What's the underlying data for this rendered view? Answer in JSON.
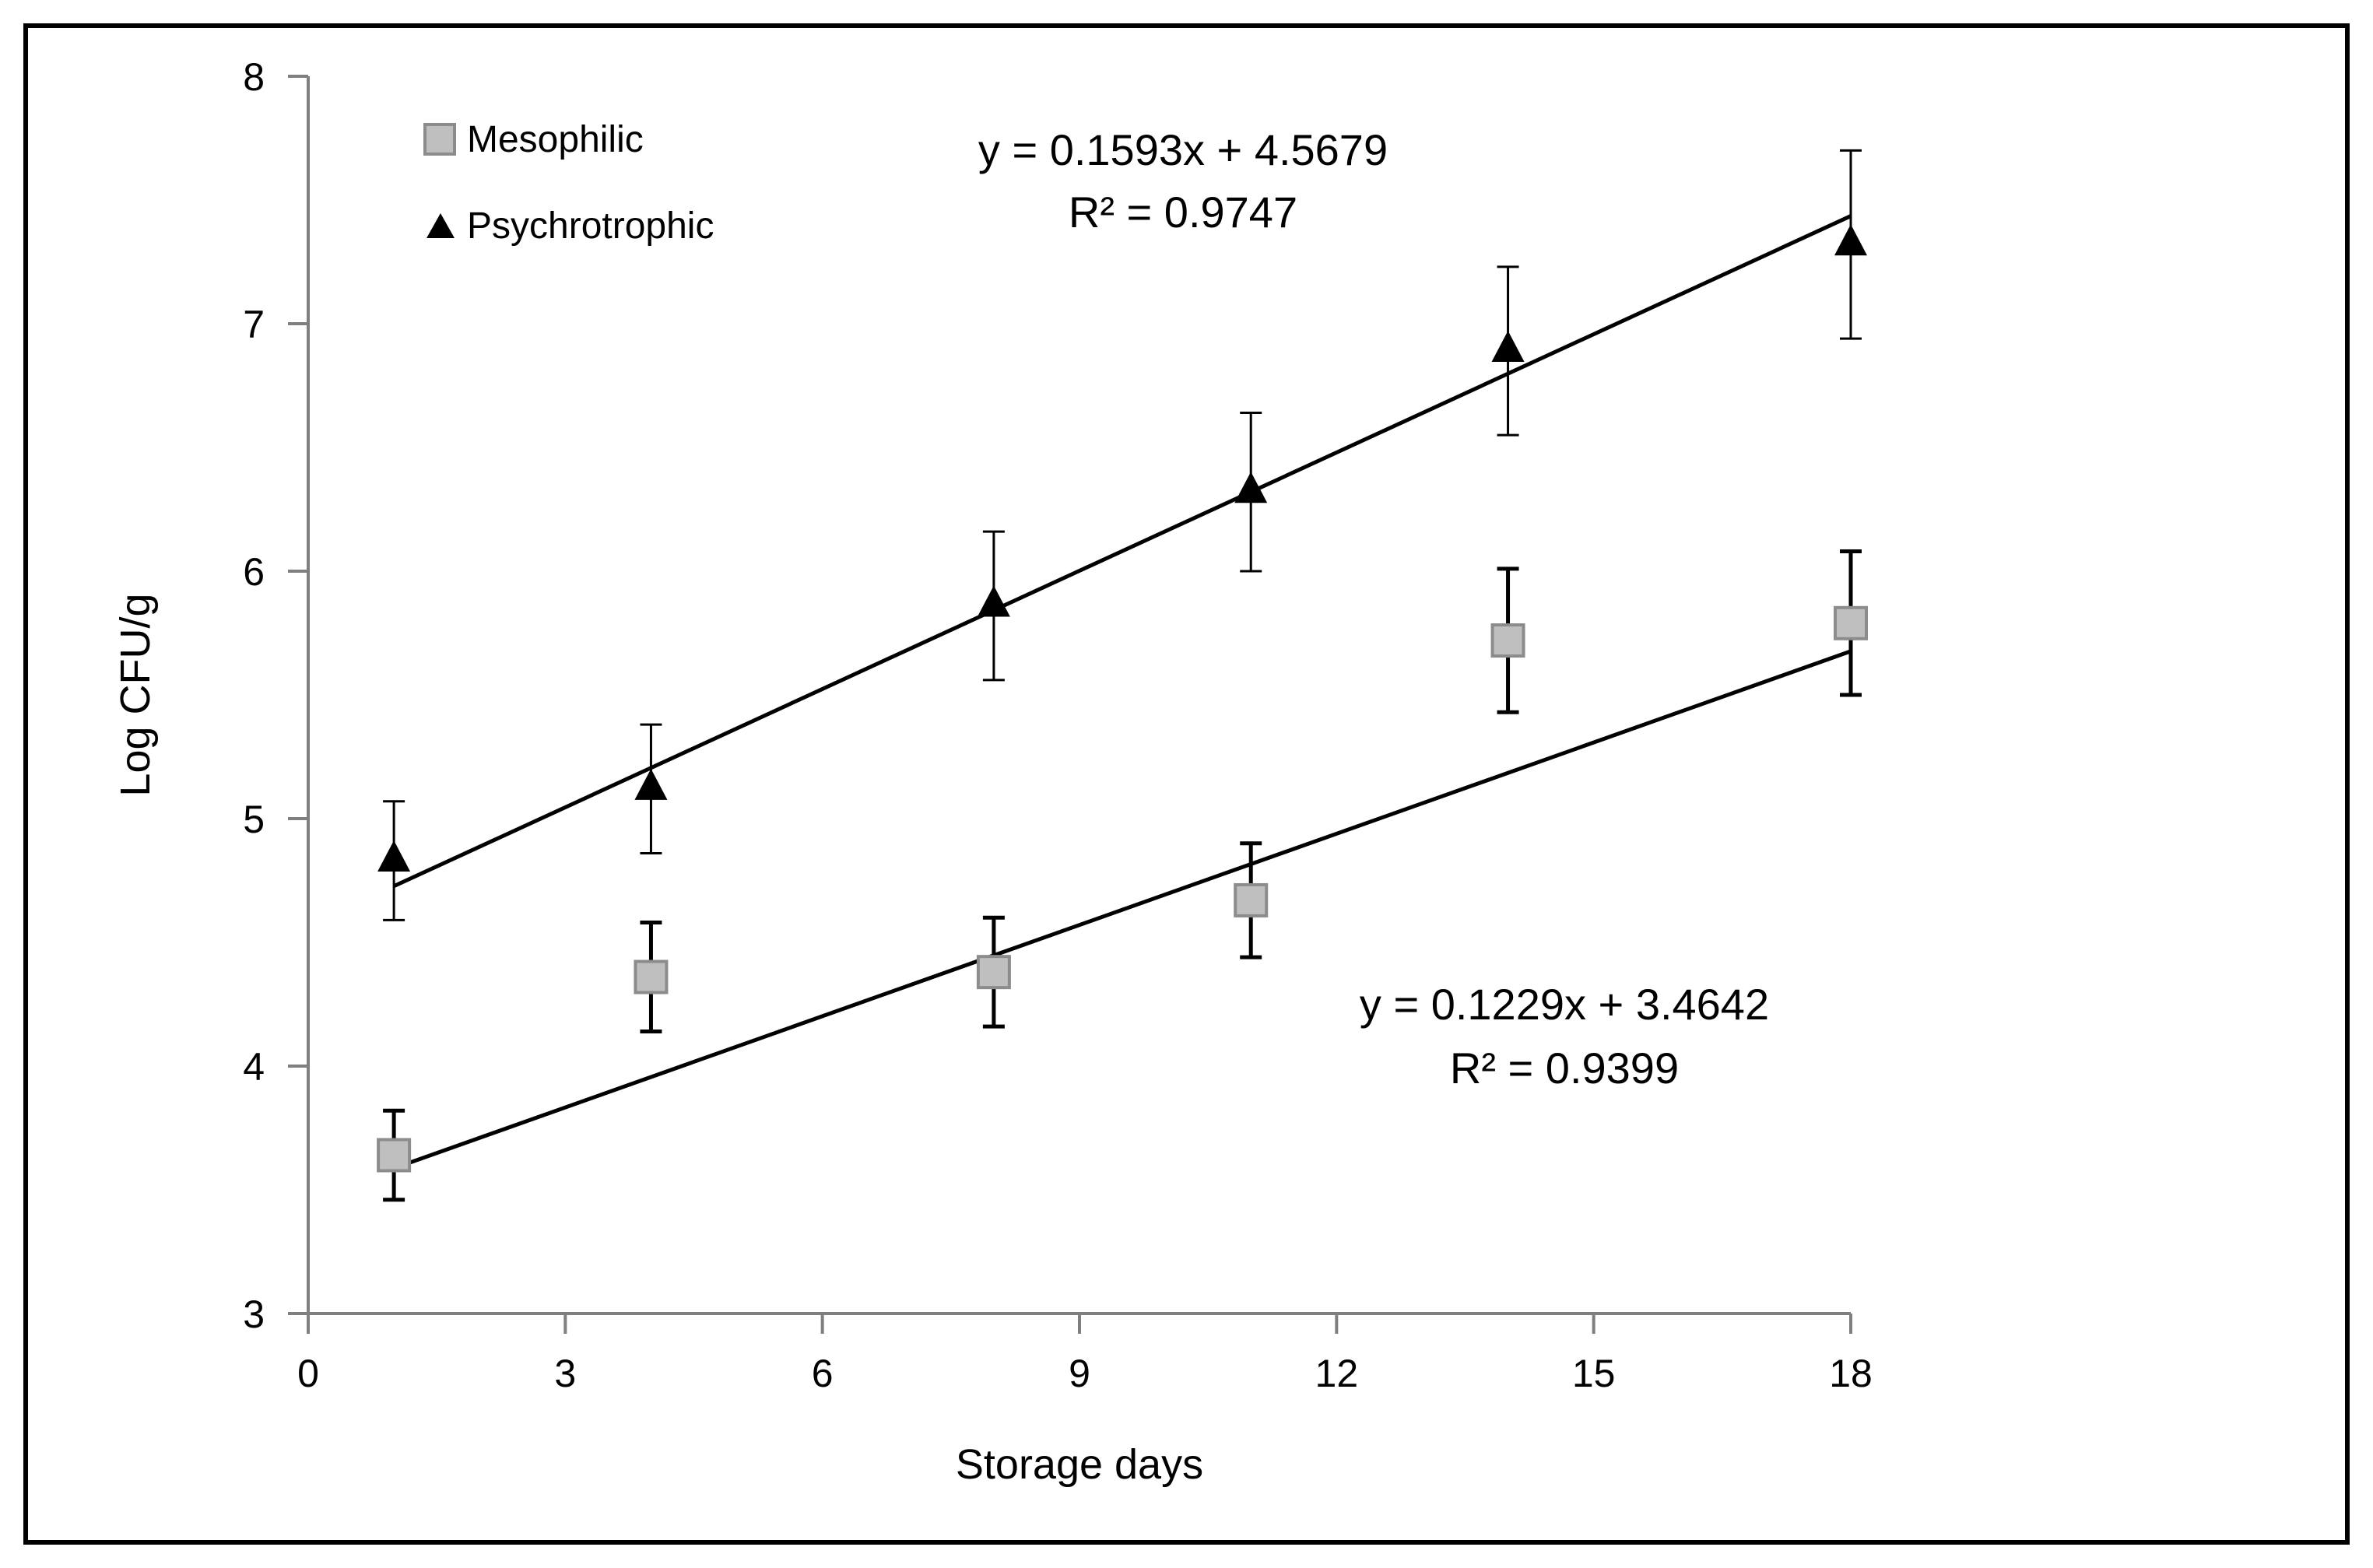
{
  "chart_data": {
    "type": "scatter",
    "title": "",
    "xlabel": "Storage days",
    "ylabel": "Log CFU/g",
    "xlim": [
      0,
      18
    ],
    "ylim": [
      3,
      8
    ],
    "xticks": [
      0,
      3,
      6,
      9,
      12,
      15,
      18
    ],
    "yticks": [
      3,
      4,
      5,
      6,
      7,
      8
    ],
    "grid": false,
    "legend_position": "top-left",
    "series": [
      {
        "name": "Mesophilic",
        "marker": "square",
        "color": "#bfbfbf",
        "x": [
          1,
          4,
          8,
          11,
          14,
          18
        ],
        "y": [
          3.64,
          4.36,
          4.38,
          4.67,
          5.72,
          5.79
        ],
        "error": [
          0.18,
          0.22,
          0.22,
          0.23,
          0.29,
          0.29
        ],
        "trendline": {
          "slope": 0.1229,
          "intercept": 3.4642,
          "equation": "y = 0.1229x + 3.4642",
          "r2": "R² = 0.9399"
        }
      },
      {
        "name": "Psychrotrophic",
        "marker": "triangle",
        "color": "#000000",
        "x": [
          1,
          4,
          8,
          11,
          14,
          18
        ],
        "y": [
          4.83,
          5.12,
          5.86,
          6.32,
          6.89,
          7.32
        ],
        "error": [
          0.24,
          0.26,
          0.3,
          0.32,
          0.34,
          0.38
        ],
        "trendline": {
          "slope": 0.1593,
          "intercept": 4.5679,
          "equation": "y = 0.1593x + 4.5679",
          "r2": "R² = 0.9747"
        }
      }
    ]
  }
}
